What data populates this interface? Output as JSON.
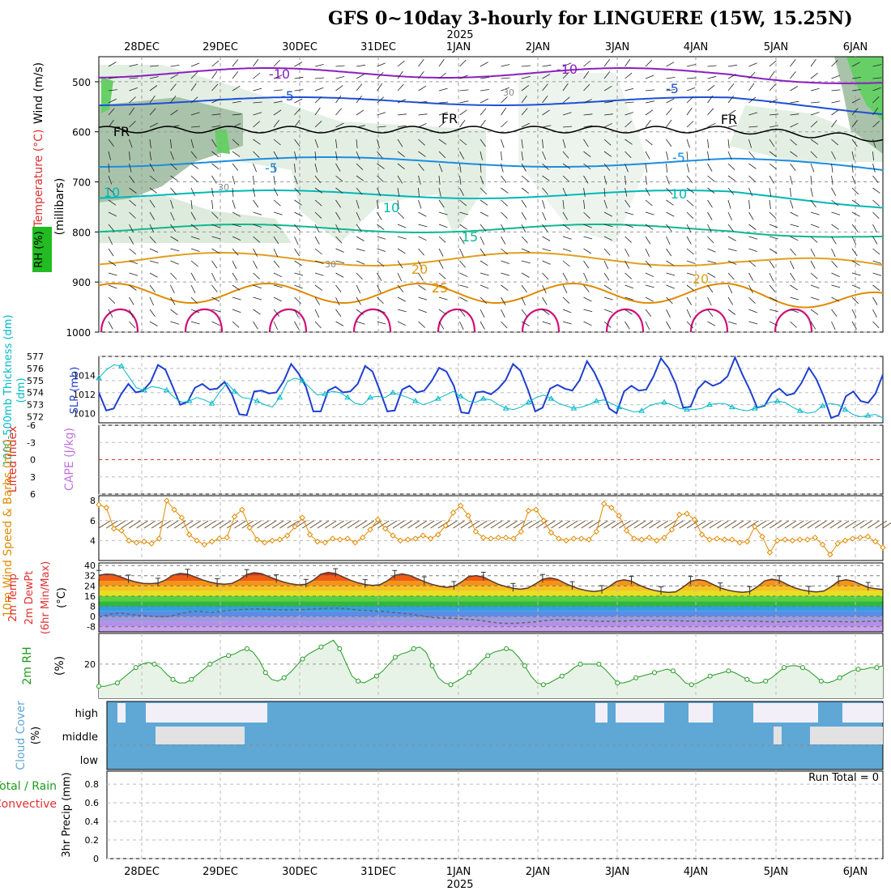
{
  "title": "GFS 0~10day 3-hourly for LINGUERE (15W, 15.25N)",
  "colors": {
    "slp": "#1e3fd0",
    "thick": "#00b8c8",
    "wind": "#e08a00",
    "rh": "#1f9a1f",
    "cloud": "#5fa8d6",
    "li": "#e03030",
    "cape": "#c070e0"
  },
  "chart_data": [
    {
      "panel": "upper-air",
      "type": "contour",
      "ylabel": "Wind (m/s)  Temperature (°C)  RH (%)  (millibars)",
      "y_ticks": [
        "500",
        "600",
        "700",
        "800",
        "900",
        "1000"
      ],
      "x_ticks": [
        "28DEC",
        "29DEC",
        "30DEC",
        "31DEC",
        "1JAN",
        "2JAN",
        "3JAN",
        "4JAN",
        "5JAN",
        "6JAN"
      ],
      "year_label": "2025",
      "isotherm_labels": [
        "-10",
        "-10",
        "-5",
        "-5",
        "FR",
        "FR",
        "FR",
        "-5",
        "-5",
        "10",
        "10",
        "10",
        "15",
        "20",
        "20",
        "25",
        "30",
        "30",
        "30"
      ]
    },
    {
      "panel": "thickness-slp",
      "type": "line",
      "ylabel": "1000-500mb Thickness (dm)",
      "ylabel2": "SLP (mb)",
      "y_ticks": [
        "572",
        "573",
        "574",
        "575",
        "576",
        "577"
      ],
      "y2_ticks": [
        "1010",
        "1012",
        "1014"
      ],
      "series": [
        {
          "name": "SLP",
          "values": [
            1012.2,
            1010.3,
            1010.5,
            1012.0,
            1013.1,
            1012.2,
            1012.4,
            1013.3,
            1015.1,
            1014.6,
            1012.8,
            1010.9,
            1011.2,
            1012.7,
            1013.1,
            1012.5,
            1012.6,
            1013.3,
            1012.0,
            1009.9,
            1009.8,
            1012.3,
            1012.4,
            1012.1,
            1012.2,
            1013.4,
            1015.2,
            1014.2,
            1012.8,
            1010.2,
            1010.2,
            1012.4,
            1012.8,
            1012.2,
            1012.3,
            1013.1,
            1015.0,
            1014.4,
            1012.4,
            1010.2,
            1010.3,
            1012.5,
            1012.9,
            1012.2,
            1012.4,
            1013.4,
            1014.8,
            1014.4,
            1012.9,
            1010.1,
            1010.0,
            1012.2,
            1012.3,
            1012.0,
            1012.6,
            1013.5,
            1015.2,
            1014.5,
            1012.5,
            1010.2,
            1010.6,
            1012.6,
            1013.0,
            1012.6,
            1012.4,
            1013.5,
            1015.5,
            1014.3,
            1012.6,
            1010.5,
            1010.0,
            1012.3,
            1012.9,
            1012.4,
            1012.5,
            1013.9,
            1015.8,
            1014.8,
            1013.1,
            1010.6,
            1010.7,
            1012.6,
            1013.4,
            1012.9,
            1013.2,
            1013.9,
            1015.9,
            1014.1,
            1012.5,
            1010.6,
            1010.8,
            1012.1,
            1012.6,
            1011.9,
            1012.1,
            1013.2,
            1014.8,
            1013.6,
            1011.8,
            1009.5,
            1009.8,
            1011.8,
            1012.3,
            1011.3,
            1011.1,
            1012.1,
            1014.1
          ]
        },
        {
          "name": "Thickness",
          "values": [
            575.2,
            575.9,
            576.3,
            576.2,
            575.3,
            574.4,
            574.2,
            574.5,
            574.4,
            574.2,
            573.6,
            573.2,
            573.3,
            573.6,
            573.4,
            573.1,
            574.0,
            574.8,
            574.1,
            573.6,
            573.5,
            573.3,
            573.0,
            572.8,
            573.6,
            574.9,
            575.2,
            575.0,
            574.4,
            573.8,
            573.9,
            574.1,
            574.0,
            573.6,
            573.1,
            573.0,
            573.6,
            573.7,
            573.6,
            574.0,
            573.8,
            573.6,
            573.3,
            573.0,
            573.2,
            573.5,
            573.8,
            574.1,
            573.7,
            573.3,
            573.2,
            573.5,
            573.4,
            573.0,
            572.7,
            572.6,
            572.8,
            573.2,
            573.6,
            573.8,
            573.5,
            573.1,
            572.9,
            572.7,
            572.8,
            573.0,
            573.3,
            573.4,
            573.1,
            572.8,
            572.6,
            572.4,
            572.5,
            572.9,
            573.1,
            573.2,
            573.0,
            572.7,
            572.6,
            572.6,
            572.7,
            573.0,
            573.1,
            573.1,
            572.8,
            572.6,
            572.5,
            572.7,
            572.9,
            573.2,
            573.3,
            573.2,
            572.8,
            572.5,
            572.3,
            572.4,
            572.9,
            573.1,
            573.0,
            572.6,
            572.2,
            572.0,
            572.1,
            572.2,
            571.9
          ]
        }
      ]
    },
    {
      "panel": "stability",
      "type": "line",
      "ylabel": "Lifted Index",
      "ylabel2": "CAPE (J/kg)",
      "y_ticks": [
        "-6",
        "-3",
        "0",
        "3",
        "6"
      ],
      "values": []
    },
    {
      "panel": "surface-wind",
      "type": "line",
      "ylabel": "10m Wind Speed & Barbs (m/s)",
      "y_ticks": [
        "4",
        "6",
        "8"
      ],
      "series": [
        {
          "name": "Wind speed",
          "values": [
            7.6,
            7.3,
            5.2,
            5.0,
            4.0,
            3.8,
            3.9,
            3.7,
            4.2,
            8.0,
            7.1,
            6.3,
            4.6,
            4.0,
            3.6,
            3.9,
            4.2,
            4.3,
            6.4,
            7.1,
            5.3,
            4.1,
            3.8,
            4.0,
            4.1,
            4.5,
            5.4,
            6.3,
            4.6,
            3.9,
            3.8,
            4.2,
            4.1,
            4.2,
            3.8,
            4.3,
            5.1,
            6.1,
            5.2,
            4.5,
            4.0,
            4.1,
            4.2,
            4.5,
            4.2,
            4.6,
            5.5,
            6.8,
            7.5,
            6.5,
            4.9,
            4.3,
            4.2,
            4.3,
            4.3,
            4.2,
            4.9,
            7.0,
            7.1,
            6.0,
            4.8,
            4.2,
            4.0,
            4.2,
            4.2,
            4.1,
            4.9,
            7.7,
            7.3,
            6.5,
            5.0,
            4.2,
            4.1,
            4.3,
            4.0,
            4.3,
            5.1,
            6.6,
            6.7,
            6.1,
            4.6,
            4.1,
            4.2,
            4.1,
            4.1,
            3.8,
            3.9,
            5.4,
            4.4,
            2.8,
            4.0,
            4.1,
            4.0,
            4.1,
            4.1,
            4.3,
            3.6,
            2.6,
            3.7,
            4.0,
            4.2,
            4.3,
            4.4,
            3.9,
            3.3
          ]
        }
      ]
    },
    {
      "panel": "temperature",
      "type": "area",
      "ylabel": "2m Temp 2m DewPt (6hr Min/Max) (°C)",
      "y_ticks": [
        "40",
        "32",
        "24",
        "16",
        "8",
        "0",
        "-8"
      ],
      "series": [
        {
          "name": "2m Temp",
          "values": [
            32.3,
            33.3,
            32.9,
            30.9,
            28.7,
            27.1,
            26.0,
            25.8,
            26.2,
            28.6,
            32.4,
            33.8,
            33.2,
            31.1,
            28.8,
            27.0,
            25.8,
            25.3,
            26.0,
            28.8,
            33.0,
            34.4,
            33.6,
            31.2,
            28.9,
            27.0,
            25.6,
            24.8,
            25.3,
            28.5,
            33.2,
            34.6,
            33.7,
            31.1,
            28.5,
            26.5,
            25.1,
            24.4,
            24.9,
            28.0,
            32.3,
            33.4,
            32.3,
            29.8,
            27.3,
            25.3,
            23.8,
            22.9,
            23.6,
            27.0,
            31.3,
            32.1,
            30.9,
            28.0,
            25.3,
            23.5,
            22.1,
            21.4,
            22.3,
            25.5,
            29.2,
            30.3,
            29.1,
            26.2,
            23.5,
            21.6,
            20.2,
            19.6,
            20.4,
            23.5,
            27.6,
            28.8,
            27.7,
            24.8,
            22.3,
            20.6,
            19.5,
            18.9,
            19.4,
            23.0,
            27.6,
            29.0,
            28.0,
            25.2,
            22.5,
            20.7,
            19.6,
            19.0,
            19.6,
            23.2,
            27.9,
            29.3,
            28.2,
            25.3,
            22.6,
            20.9,
            19.8,
            19.3,
            19.9,
            23.3,
            27.8,
            28.8,
            27.7,
            25.2,
            22.9,
            21.8,
            21.2
          ]
        },
        {
          "name": "2m DewPt",
          "values": [
            -0.5,
            1.0,
            2.4,
            2.7,
            1.9,
            1.1,
            0.6,
            0.2,
            -0.2,
            -0.1,
            0.9,
            2.6,
            3.6,
            4.0,
            3.6,
            3.2,
            3.8,
            4.5,
            5.0,
            5.5,
            5.8,
            6.0,
            5.8,
            5.5,
            5.2,
            5.1,
            5.2,
            5.4,
            5.7,
            6.0,
            6.3,
            6.6,
            6.5,
            6.0,
            5.3,
            4.8,
            4.5,
            4.1,
            3.8,
            3.2,
            2.7,
            2.1,
            1.3,
            0.3,
            -0.6,
            -1.1,
            -1.3,
            -1.4,
            -1.8,
            -2.2,
            -2.6,
            -3.4,
            -4.3,
            -5.1,
            -5.4,
            -5.3,
            -5.0,
            -4.6,
            -4.1,
            -3.4,
            -2.8,
            -2.5,
            -2.6,
            -2.8,
            -3.0,
            -3.3,
            -3.7,
            -3.8,
            -3.8,
            -3.6,
            -3.4,
            -3.2,
            -3.1,
            -3.1,
            -3.0,
            -3.0,
            -3.2,
            -3.4,
            -3.6,
            -3.7,
            -3.8,
            -3.7,
            -3.5,
            -3.4,
            -3.3,
            -3.3,
            -3.4,
            -3.6,
            -3.9,
            -4.1,
            -4.2,
            -4.1,
            -3.8,
            -3.6,
            -3.5,
            -3.5,
            -3.6,
            -3.8,
            -4.0,
            -4.1,
            -4.2,
            -4.0,
            -3.8,
            -3.6,
            -3.4
          ]
        }
      ]
    },
    {
      "panel": "relative-humidity",
      "type": "area",
      "ylabel": "2m RH (%)",
      "y_ticks": [
        "20"
      ],
      "values": [
        7,
        7,
        8,
        9,
        12,
        15,
        18,
        20,
        21,
        20,
        18,
        14,
        11,
        9,
        9,
        11,
        14,
        17,
        20,
        22,
        24,
        25,
        26,
        28,
        29,
        27,
        22,
        15,
        11,
        10,
        12,
        15,
        19,
        23,
        26,
        28,
        30,
        32,
        34,
        29,
        21,
        13,
        10,
        9,
        11,
        13,
        16,
        20,
        24,
        26,
        27,
        29,
        30,
        27,
        19,
        12,
        9,
        8,
        10,
        12,
        15,
        18,
        22,
        25,
        27,
        28,
        29,
        28,
        24,
        19,
        13,
        9,
        8,
        9,
        11,
        13,
        15,
        18,
        20,
        20,
        20,
        20,
        17,
        13,
        9,
        9,
        10,
        12,
        13,
        14,
        15,
        16,
        17,
        16,
        13,
        9,
        8,
        9,
        11,
        13,
        14,
        15,
        16,
        15,
        13,
        11,
        9,
        9,
        10,
        12,
        15,
        18,
        19,
        19,
        18,
        16,
        13,
        10,
        9,
        10,
        12,
        14,
        16,
        17,
        17,
        18,
        18,
        19
      ]
    },
    {
      "panel": "cloud-cover",
      "type": "heatmap",
      "ylabel": "Cloud Cover (%)",
      "y_ticks": [
        "high",
        "middle",
        "low"
      ]
    },
    {
      "panel": "precipitation",
      "type": "bar",
      "ylabel": "3hr Precip (mm)",
      "ylabel2": "Total / Rain",
      "ylabel3": "Convective",
      "y_ticks": [
        "0",
        "0.2",
        "0.4",
        "0.6",
        "0.8"
      ],
      "values": [],
      "annotation": "Run Total = 0"
    }
  ]
}
